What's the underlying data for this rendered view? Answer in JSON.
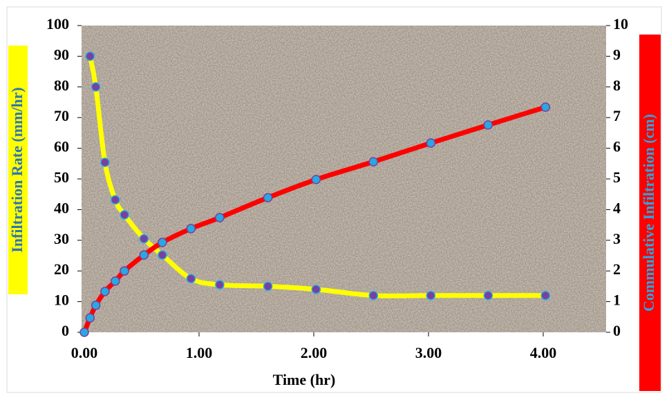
{
  "chart_data": {
    "type": "line",
    "x_label": "Time (hr)",
    "y_label": "Infiltration Rate (mm/hr)",
    "y2_label": "Commulative Infiltration (cm)",
    "x": [
      0,
      0.05,
      0.1,
      0.18,
      0.27,
      0.35,
      0.52,
      0.68,
      0.93,
      1.18,
      1.6,
      2.02,
      2.52,
      3.02,
      3.52,
      4.02
    ],
    "series": [
      {
        "color": "#ffff00",
        "marker_color": "#7b3f9e",
        "marker_edge": "#29a8e0",
        "values": [
          null,
          90,
          80,
          55.4,
          43.2,
          38.3,
          30.5,
          25.2,
          17.5,
          15.5,
          15,
          14,
          12,
          12,
          12,
          12
        ]
      },
      {
        "color": "#ff0000",
        "marker_color": "#29a8e0",
        "marker_edge": "#7b3f9e",
        "axis": "y2",
        "values": [
          0,
          0.47,
          0.88,
          1.33,
          1.67,
          2.0,
          2.52,
          2.93,
          3.38,
          3.74,
          4.39,
          4.98,
          5.56,
          6.17,
          6.76,
          7.34
        ]
      }
    ],
    "xlim": [
      0,
      4.5
    ],
    "xticks": [
      {
        "value": 0,
        "label": "0.00"
      },
      {
        "value": 1,
        "label": "1.00"
      },
      {
        "value": 2,
        "label": "2.00"
      },
      {
        "value": 3,
        "label": "3.00"
      },
      {
        "value": 4,
        "label": "4.00"
      }
    ],
    "ylim": [
      0,
      100
    ],
    "yticks": [
      0,
      10,
      20,
      30,
      40,
      50,
      60,
      70,
      80,
      90,
      100
    ],
    "y2lim": [
      0,
      10
    ],
    "y2ticks": [
      0,
      1,
      2,
      3,
      4,
      5,
      6,
      7,
      8,
      9,
      10
    ],
    "smooth": true
  }
}
